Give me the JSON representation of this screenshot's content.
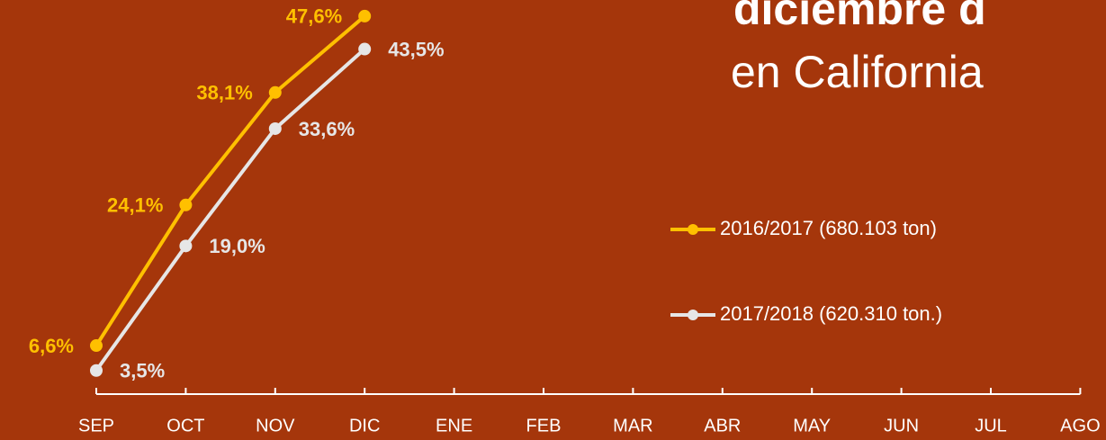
{
  "chart_data": {
    "type": "line",
    "title": "diciembre d",
    "subtitle": "en California",
    "categories": [
      "SEP",
      "OCT",
      "NOV",
      "DIC",
      "ENE",
      "FEB",
      "MAR",
      "ABR",
      "MAY",
      "JUN",
      "JUL",
      "AGO"
    ],
    "ylim": [
      0,
      50
    ],
    "series": [
      {
        "name": "2016/2017 (680.103 ton)",
        "color": "#ffc000",
        "values": [
          6.6,
          24.1,
          38.1,
          47.6,
          null,
          null,
          null,
          null,
          null,
          null,
          null,
          null
        ],
        "value_labels": [
          "6,6%",
          "24,1%",
          "38,1%",
          "47,6%",
          null,
          null,
          null,
          null,
          null,
          null,
          null,
          null
        ]
      },
      {
        "name": "2017/2018 (620.310 ton.)",
        "color": "#e6e6e6",
        "values": [
          3.5,
          19.0,
          33.6,
          43.5,
          null,
          null,
          null,
          null,
          null,
          null,
          null,
          null
        ],
        "value_labels": [
          "3,5%",
          "19,0%",
          "33,6%",
          "43,5%",
          null,
          null,
          null,
          null,
          null,
          null,
          null,
          null
        ]
      }
    ]
  }
}
